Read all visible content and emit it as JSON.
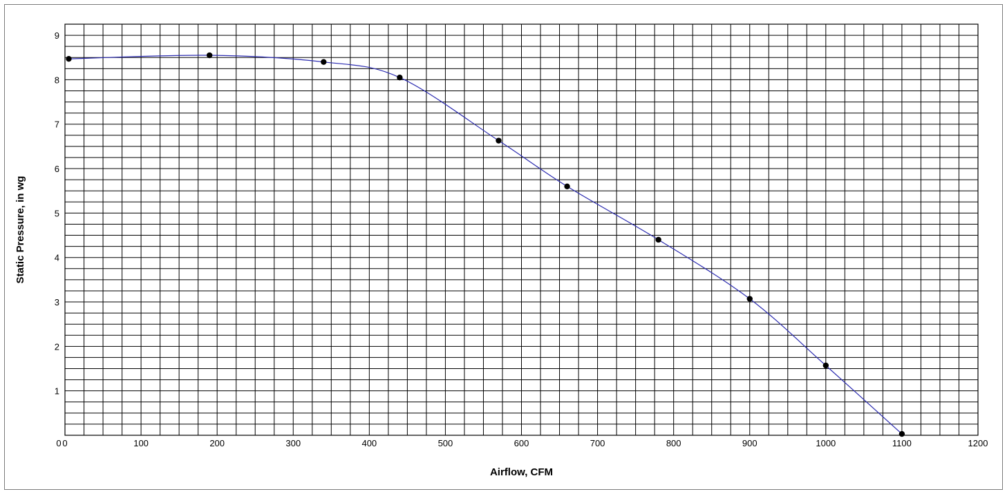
{
  "chart_data": {
    "type": "line",
    "title": "",
    "xlabel": "Airflow, CFM",
    "ylabel": "Static Pressure, in wg",
    "xlim": [
      0,
      1200
    ],
    "ylim": [
      0,
      9.25
    ],
    "x_ticks": [
      0,
      100,
      200,
      300,
      400,
      500,
      600,
      700,
      800,
      900,
      1000,
      1100,
      1200
    ],
    "y_ticks": [
      1,
      2,
      3,
      4,
      5,
      6,
      7,
      8,
      9
    ],
    "x_tick_labels": [
      "0",
      "100",
      "200",
      "300",
      "400",
      "500",
      "600",
      "700",
      "800",
      "900",
      "1000",
      "1100",
      "1200"
    ],
    "y_tick_labels": [
      "1",
      "2",
      "3",
      "4",
      "5",
      "6",
      "7",
      "8",
      "9"
    ],
    "y_zero_label": "0",
    "grid": true,
    "legend": "none",
    "series": [
      {
        "x": [
          5,
          190,
          340,
          440,
          570,
          660,
          780,
          900,
          1000,
          1100
        ],
        "y": [
          8.47,
          8.55,
          8.4,
          8.05,
          6.63,
          5.6,
          4.4,
          3.07,
          1.57,
          0.03
        ],
        "curve_color": "#2b2bb0",
        "marker_color": "#000000"
      }
    ]
  }
}
